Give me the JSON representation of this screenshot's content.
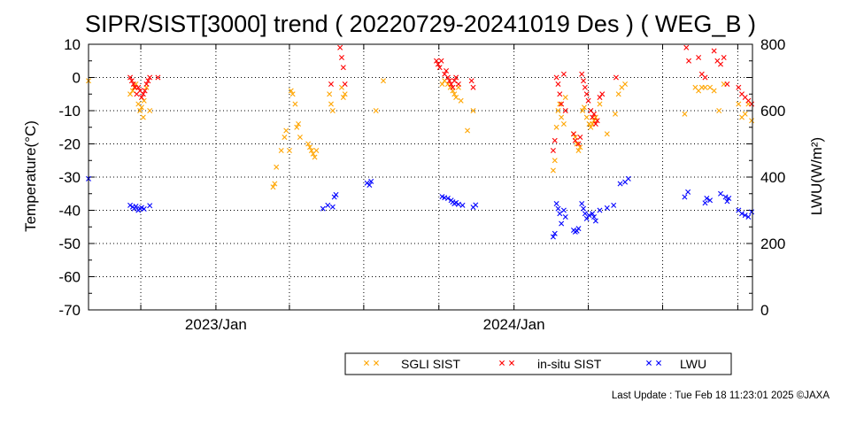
{
  "chart_data": {
    "type": "scatter",
    "title": "SIPR/SIST[3000] trend ( 20220729-20241019 Des ) ( WEG_B )",
    "ylabel_left": "Temperature(°C)",
    "ylabel_right": "LWU(W/m²)",
    "ylim_left": [
      -70,
      10
    ],
    "yticks_left": [
      "10",
      "0",
      "-10",
      "-20",
      "-30",
      "-40",
      "-50",
      "-60",
      "-70"
    ],
    "ylim_right": [
      0,
      800
    ],
    "yticks_right": [
      "800",
      "600",
      "400",
      "200",
      "0"
    ],
    "xlim": [
      "2022-07-29",
      "2024-10-19"
    ],
    "xtick_labels": [
      {
        "label": "2023/Jan",
        "date": "2023-01-01"
      },
      {
        "label": "2024/Jan",
        "date": "2024-01-01"
      }
    ],
    "grid": true,
    "legend_position": "bottom-right",
    "series": [
      {
        "name": "SGLI SIST",
        "color": "#ffa500",
        "axis": "left",
        "points": [
          [
            "2022-07-29",
            -1
          ],
          [
            "2022-09-18",
            -5
          ],
          [
            "2022-09-21",
            -4
          ],
          [
            "2022-09-23",
            -3
          ],
          [
            "2022-09-25",
            -2
          ],
          [
            "2022-09-28",
            -8
          ],
          [
            "2022-09-30",
            -10
          ],
          [
            "2022-10-02",
            -9
          ],
          [
            "2022-10-04",
            -12
          ],
          [
            "2022-10-05",
            -7
          ],
          [
            "2022-10-08",
            -3
          ],
          [
            "2022-10-12",
            -10
          ],
          [
            "2023-03-12",
            -33
          ],
          [
            "2023-03-14",
            -32
          ],
          [
            "2023-03-16",
            -27
          ],
          [
            "2023-03-22",
            -22
          ],
          [
            "2023-03-26",
            -18
          ],
          [
            "2023-03-28",
            -16
          ],
          [
            "2023-04-01",
            -22
          ],
          [
            "2023-04-03",
            -4
          ],
          [
            "2023-04-05",
            -5
          ],
          [
            "2023-04-08",
            -8
          ],
          [
            "2023-04-10",
            -15
          ],
          [
            "2023-04-12",
            -14
          ],
          [
            "2023-04-14",
            -18
          ],
          [
            "2023-04-24",
            -20
          ],
          [
            "2023-04-26",
            -21
          ],
          [
            "2023-04-28",
            -22
          ],
          [
            "2023-04-30",
            -23
          ],
          [
            "2023-05-02",
            -24
          ],
          [
            "2023-05-04",
            -22
          ],
          [
            "2023-05-20",
            -5
          ],
          [
            "2023-05-22",
            -8
          ],
          [
            "2023-05-24",
            -10
          ],
          [
            "2023-06-04",
            -3
          ],
          [
            "2023-06-06",
            -6
          ],
          [
            "2023-06-08",
            -5
          ],
          [
            "2023-07-16",
            -10
          ],
          [
            "2023-07-25",
            -1
          ],
          [
            "2023-10-05",
            -2
          ],
          [
            "2023-10-08",
            -1
          ],
          [
            "2023-10-12",
            -2
          ],
          [
            "2023-10-15",
            -3
          ],
          [
            "2023-10-18",
            -4
          ],
          [
            "2023-10-20",
            -5
          ],
          [
            "2023-10-22",
            -6
          ],
          [
            "2023-10-25",
            -3
          ],
          [
            "2023-10-28",
            -7
          ],
          [
            "2023-11-05",
            -16
          ],
          [
            "2023-11-12",
            -10
          ],
          [
            "2024-02-18",
            -28
          ],
          [
            "2024-02-20",
            -25
          ],
          [
            "2024-02-22",
            -15
          ],
          [
            "2024-02-24",
            -10
          ],
          [
            "2024-02-26",
            -8
          ],
          [
            "2024-02-28",
            -12
          ],
          [
            "2024-03-02",
            -14
          ],
          [
            "2024-03-04",
            -6
          ],
          [
            "2024-03-14",
            -17
          ],
          [
            "2024-03-16",
            -18
          ],
          [
            "2024-03-18",
            -20
          ],
          [
            "2024-03-20",
            -22
          ],
          [
            "2024-03-22",
            -21
          ],
          [
            "2024-03-25",
            -10
          ],
          [
            "2024-03-27",
            -9
          ],
          [
            "2024-03-30",
            -12
          ],
          [
            "2024-04-02",
            -14
          ],
          [
            "2024-04-04",
            -15
          ],
          [
            "2024-04-06",
            -14
          ],
          [
            "2024-04-08",
            -13
          ],
          [
            "2024-04-10",
            -12
          ],
          [
            "2024-04-15",
            -8
          ],
          [
            "2024-04-24",
            -17
          ],
          [
            "2024-05-04",
            -11
          ],
          [
            "2024-05-08",
            -5
          ],
          [
            "2024-05-12",
            -3
          ],
          [
            "2024-05-16",
            -2
          ],
          [
            "2024-07-28",
            -11
          ],
          [
            "2024-08-10",
            -3
          ],
          [
            "2024-08-14",
            -4
          ],
          [
            "2024-08-18",
            -3
          ],
          [
            "2024-08-22",
            -3
          ],
          [
            "2024-08-28",
            -3
          ],
          [
            "2024-09-02",
            -4
          ],
          [
            "2024-09-08",
            -10
          ],
          [
            "2024-09-14",
            -2
          ],
          [
            "2024-10-02",
            -8
          ],
          [
            "2024-10-06",
            -12
          ],
          [
            "2024-10-10",
            -11
          ],
          [
            "2024-10-14",
            -8
          ],
          [
            "2024-10-18",
            -13
          ]
        ]
      },
      {
        "name": "in-situ SIST",
        "color": "#ff0000",
        "axis": "left",
        "points": [
          [
            "2022-09-18",
            0
          ],
          [
            "2022-09-20",
            -1
          ],
          [
            "2022-09-22",
            -2
          ],
          [
            "2022-09-24",
            -3
          ],
          [
            "2022-09-26",
            -5
          ],
          [
            "2022-09-28",
            -3
          ],
          [
            "2022-09-30",
            -4
          ],
          [
            "2022-10-02",
            -6
          ],
          [
            "2022-10-04",
            -5
          ],
          [
            "2022-10-06",
            -4
          ],
          [
            "2022-10-08",
            -2
          ],
          [
            "2022-10-10",
            -1
          ],
          [
            "2022-10-12",
            0
          ],
          [
            "2022-10-22",
            0
          ],
          [
            "2023-05-22",
            -2
          ],
          [
            "2023-06-02",
            9
          ],
          [
            "2023-06-04",
            6
          ],
          [
            "2023-06-06",
            3
          ],
          [
            "2023-06-08",
            -2
          ],
          [
            "2023-09-28",
            5
          ],
          [
            "2023-09-30",
            4
          ],
          [
            "2023-10-02",
            3
          ],
          [
            "2023-10-04",
            5
          ],
          [
            "2023-10-08",
            1
          ],
          [
            "2023-10-10",
            2
          ],
          [
            "2023-10-12",
            0
          ],
          [
            "2023-10-14",
            -1
          ],
          [
            "2023-10-16",
            -2
          ],
          [
            "2023-10-18",
            -3
          ],
          [
            "2023-10-20",
            -1
          ],
          [
            "2023-10-22",
            0
          ],
          [
            "2023-10-25",
            -2
          ],
          [
            "2023-11-10",
            -1
          ],
          [
            "2023-11-12",
            -3
          ],
          [
            "2024-02-18",
            -22
          ],
          [
            "2024-02-20",
            -19
          ],
          [
            "2024-02-22",
            0
          ],
          [
            "2024-02-24",
            -2
          ],
          [
            "2024-02-26",
            -5
          ],
          [
            "2024-02-28",
            -8
          ],
          [
            "2024-03-02",
            1
          ],
          [
            "2024-03-04",
            -10
          ],
          [
            "2024-03-14",
            -17
          ],
          [
            "2024-03-16",
            -19
          ],
          [
            "2024-03-20",
            -20
          ],
          [
            "2024-03-22",
            -18
          ],
          [
            "2024-03-24",
            1
          ],
          [
            "2024-03-26",
            -1
          ],
          [
            "2024-03-28",
            -3
          ],
          [
            "2024-03-30",
            -5
          ],
          [
            "2024-04-01",
            -7
          ],
          [
            "2024-04-04",
            -10
          ],
          [
            "2024-04-06",
            -12
          ],
          [
            "2024-04-08",
            -11
          ],
          [
            "2024-04-10",
            -14
          ],
          [
            "2024-04-12",
            -13
          ],
          [
            "2024-04-15",
            -6
          ],
          [
            "2024-04-18",
            -5
          ],
          [
            "2024-05-05",
            0
          ],
          [
            "2024-07-30",
            9
          ],
          [
            "2024-08-02",
            5
          ],
          [
            "2024-08-14",
            6
          ],
          [
            "2024-08-18",
            1
          ],
          [
            "2024-08-22",
            0
          ],
          [
            "2024-09-02",
            8
          ],
          [
            "2024-09-06",
            5
          ],
          [
            "2024-09-10",
            4
          ],
          [
            "2024-09-14",
            6
          ],
          [
            "2024-09-18",
            -2
          ],
          [
            "2024-10-02",
            -3
          ],
          [
            "2024-10-06",
            -5
          ],
          [
            "2024-10-10",
            -6
          ],
          [
            "2024-10-14",
            -7
          ],
          [
            "2024-10-18",
            -8
          ]
        ]
      },
      {
        "name": "LWU",
        "color": "#0000ff",
        "axis": "right",
        "points": [
          [
            "2022-07-29",
            395
          ],
          [
            "2022-09-18",
            315
          ],
          [
            "2022-09-21",
            310
          ],
          [
            "2022-09-23",
            305
          ],
          [
            "2022-09-25",
            312
          ],
          [
            "2022-09-28",
            300
          ],
          [
            "2022-09-30",
            305
          ],
          [
            "2022-10-02",
            308
          ],
          [
            "2022-10-05",
            304
          ],
          [
            "2022-10-12",
            314
          ],
          [
            "2023-05-12",
            305
          ],
          [
            "2023-05-18",
            315
          ],
          [
            "2023-05-24",
            310
          ],
          [
            "2023-05-26",
            340
          ],
          [
            "2023-05-28",
            347
          ],
          [
            "2023-07-05",
            382
          ],
          [
            "2023-07-08",
            376
          ],
          [
            "2023-07-10",
            387
          ],
          [
            "2023-10-05",
            341
          ],
          [
            "2023-10-08",
            338
          ],
          [
            "2023-10-12",
            336
          ],
          [
            "2023-10-16",
            330
          ],
          [
            "2023-10-18",
            325
          ],
          [
            "2023-10-20",
            320
          ],
          [
            "2023-10-22",
            323
          ],
          [
            "2023-10-25",
            318
          ],
          [
            "2023-10-30",
            315
          ],
          [
            "2023-11-12",
            309
          ],
          [
            "2023-11-15",
            316
          ],
          [
            "2024-02-18",
            220
          ],
          [
            "2024-02-20",
            230
          ],
          [
            "2024-02-22",
            320
          ],
          [
            "2024-02-24",
            305
          ],
          [
            "2024-02-26",
            290
          ],
          [
            "2024-02-28",
            260
          ],
          [
            "2024-03-02",
            300
          ],
          [
            "2024-03-04",
            280
          ],
          [
            "2024-03-14",
            240
          ],
          [
            "2024-03-16",
            235
          ],
          [
            "2024-03-18",
            238
          ],
          [
            "2024-03-20",
            245
          ],
          [
            "2024-03-24",
            320
          ],
          [
            "2024-03-26",
            305
          ],
          [
            "2024-03-28",
            290
          ],
          [
            "2024-03-30",
            275
          ],
          [
            "2024-04-02",
            285
          ],
          [
            "2024-04-06",
            290
          ],
          [
            "2024-04-08",
            280
          ],
          [
            "2024-04-10",
            268
          ],
          [
            "2024-04-15",
            300
          ],
          [
            "2024-04-24",
            307
          ],
          [
            "2024-05-02",
            315
          ],
          [
            "2024-05-10",
            380
          ],
          [
            "2024-05-16",
            385
          ],
          [
            "2024-05-20",
            395
          ],
          [
            "2024-07-28",
            340
          ],
          [
            "2024-08-01",
            355
          ],
          [
            "2024-08-22",
            322
          ],
          [
            "2024-08-24",
            336
          ],
          [
            "2024-08-28",
            330
          ],
          [
            "2024-09-10",
            350
          ],
          [
            "2024-09-16",
            340
          ],
          [
            "2024-09-18",
            327
          ],
          [
            "2024-09-20",
            336
          ],
          [
            "2024-10-02",
            300
          ],
          [
            "2024-10-06",
            290
          ],
          [
            "2024-10-10",
            285
          ],
          [
            "2024-10-14",
            280
          ],
          [
            "2024-10-18",
            295
          ]
        ]
      }
    ]
  },
  "legend": {
    "items": [
      {
        "label": "SGLI SIST",
        "color": "#ffa500"
      },
      {
        "label": "in-situ SIST",
        "color": "#ff0000"
      },
      {
        "label": "LWU",
        "color": "#0000ff"
      }
    ]
  },
  "footer": {
    "last_update": "Last Update : Tue Feb 18 11:23:01 2025  ©JAXA"
  }
}
